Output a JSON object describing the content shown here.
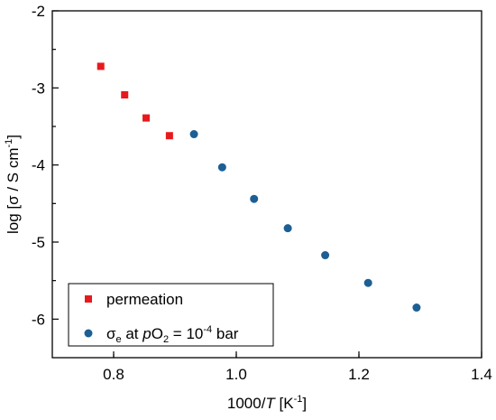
{
  "chart_data": {
    "type": "scatter",
    "xlabel": {
      "main": "1000/",
      "italic": "T",
      "after": " [K",
      "sup": "-1",
      "end": "]"
    },
    "ylabel": {
      "main": "log [σ / S cm",
      "sup": "-1",
      "end": "]"
    },
    "xlim": [
      0.7,
      1.4
    ],
    "ylim": [
      -6.5,
      -2
    ],
    "xticks": [
      0.8,
      1.0,
      1.2,
      1.4
    ],
    "xtick_labels": [
      "0.8",
      "1.0",
      "1.2",
      "1.4"
    ],
    "yticks": [
      -2,
      -3,
      -4,
      -5,
      -6
    ],
    "ytick_labels": [
      "-2",
      "-3",
      "-4",
      "-5",
      "-6"
    ],
    "grid": false,
    "legend_position": "bottom-left",
    "series": [
      {
        "name": "permeation",
        "marker": "square",
        "color": "#e8191c",
        "x": [
          0.779,
          0.818,
          0.853,
          0.891
        ],
        "y": [
          -2.72,
          -3.09,
          -3.39,
          -3.62
        ]
      },
      {
        "name_parts": {
          "sigma": "σ",
          "sub": "e",
          "at": " at ",
          "p": "p",
          "o2": "O",
          "o2sub": "2",
          "eq": " = 10",
          "sup": "-4",
          "unit": " bar"
        },
        "marker": "circle",
        "color": "#1c5f94",
        "x": [
          0.931,
          0.977,
          1.029,
          1.084,
          1.145,
          1.215,
          1.294
        ],
        "y": [
          -3.6,
          -4.03,
          -4.44,
          -4.82,
          -5.17,
          -5.53,
          -5.85
        ]
      }
    ]
  }
}
